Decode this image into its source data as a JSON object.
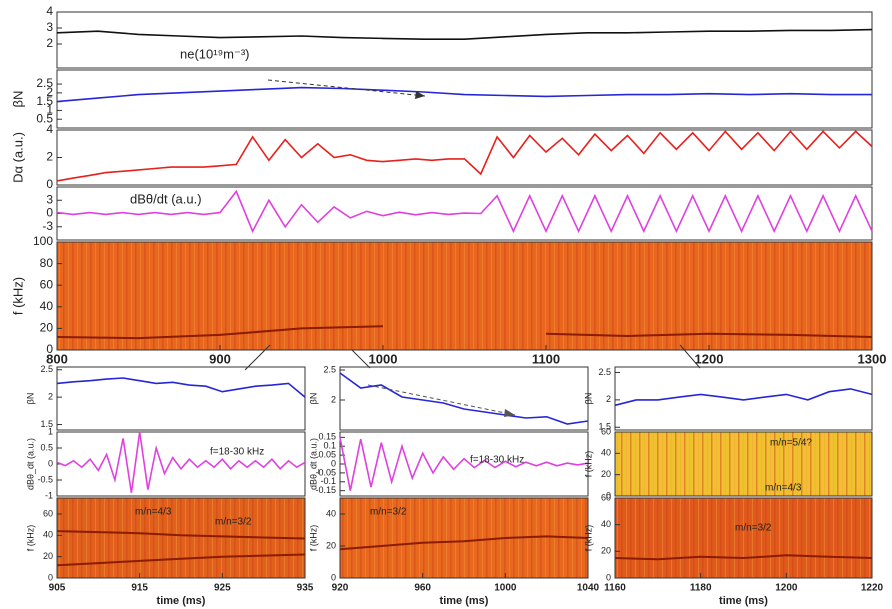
{
  "chart_data": [
    {
      "type": "line",
      "ylabel": "ne(10¹⁹m⁻³)",
      "xlim": [
        800,
        1300
      ],
      "ylim": [
        0.5,
        4
      ],
      "yticks": [
        2,
        3,
        4
      ],
      "x": [
        800,
        825,
        850,
        875,
        900,
        925,
        950,
        975,
        1000,
        1025,
        1050,
        1075,
        1100,
        1125,
        1150,
        1175,
        1200,
        1225,
        1250,
        1275,
        1300
      ],
      "series": [
        {
          "color": "#111111",
          "values": [
            2.7,
            2.8,
            2.6,
            2.5,
            2.4,
            2.45,
            2.5,
            2.4,
            2.35,
            2.3,
            2.3,
            2.45,
            2.6,
            2.7,
            2.7,
            2.75,
            2.8,
            2.8,
            2.85,
            2.85,
            2.9
          ]
        }
      ]
    },
    {
      "type": "line",
      "ylabel": "βN",
      "xlim": [
        800,
        1300
      ],
      "ylim": [
        0,
        3.3
      ],
      "yticks": [
        0.5,
        1,
        1.5,
        2,
        2.5
      ],
      "x": [
        800,
        825,
        850,
        875,
        900,
        925,
        950,
        975,
        1000,
        1025,
        1050,
        1075,
        1100,
        1125,
        1150,
        1175,
        1200,
        1225,
        1250,
        1275,
        1300
      ],
      "series": [
        {
          "color": "#2626d9",
          "values": [
            1.5,
            1.7,
            1.9,
            2.0,
            2.1,
            2.2,
            2.3,
            2.25,
            2.15,
            2.05,
            1.9,
            1.85,
            1.8,
            1.85,
            1.9,
            1.9,
            1.95,
            1.9,
            1.95,
            1.9,
            1.9
          ]
        }
      ]
    },
    {
      "type": "line",
      "ylabel": "Dα (a.u.)",
      "xlim": [
        800,
        1300
      ],
      "ylim": [
        0,
        4
      ],
      "yticks": [
        0,
        2,
        4
      ],
      "x": [
        800,
        810,
        820,
        830,
        840,
        850,
        860,
        870,
        880,
        890,
        900,
        910,
        920,
        930,
        940,
        950,
        960,
        970,
        980,
        990,
        1000,
        1010,
        1020,
        1030,
        1040,
        1050,
        1060,
        1070,
        1080,
        1090,
        1100,
        1110,
        1120,
        1130,
        1140,
        1150,
        1160,
        1170,
        1180,
        1190,
        1200,
        1210,
        1220,
        1230,
        1240,
        1250,
        1260,
        1270,
        1280,
        1290,
        1300
      ],
      "series": [
        {
          "color": "#e8201c",
          "values": [
            0.3,
            0.5,
            0.7,
            0.9,
            1.0,
            1.1,
            1.2,
            1.3,
            1.3,
            1.3,
            1.4,
            1.5,
            3.5,
            1.8,
            3.3,
            2.0,
            3.0,
            2.0,
            2.2,
            1.8,
            1.7,
            1.8,
            1.9,
            1.8,
            1.9,
            1.9,
            0.8,
            3.5,
            2.0,
            3.6,
            2.4,
            3.4,
            2.2,
            3.7,
            2.5,
            3.6,
            2.3,
            3.8,
            2.6,
            3.8,
            2.5,
            3.9,
            2.6,
            3.8,
            2.5,
            3.9,
            2.6,
            3.9,
            2.7,
            3.9,
            2.8
          ]
        }
      ]
    },
    {
      "type": "line",
      "ylabel": "dBθ/dt (a.u.)",
      "xlim": [
        800,
        1300
      ],
      "ylim": [
        -6,
        6
      ],
      "yticks": [
        -3,
        0,
        3
      ],
      "x": [
        800,
        810,
        820,
        830,
        840,
        850,
        860,
        870,
        880,
        890,
        900,
        910,
        920,
        930,
        940,
        950,
        960,
        970,
        980,
        990,
        1000,
        1010,
        1020,
        1030,
        1040,
        1050,
        1060,
        1070,
        1080,
        1090,
        1100,
        1110,
        1120,
        1130,
        1140,
        1150,
        1160,
        1170,
        1180,
        1190,
        1200,
        1210,
        1220,
        1230,
        1240,
        1250,
        1260,
        1270,
        1280,
        1290,
        1300
      ],
      "series": [
        {
          "color": "#e040e0",
          "values": [
            0.2,
            -0.2,
            0.2,
            -0.2,
            0.2,
            -0.2,
            0.2,
            -0.2,
            0.2,
            -0.2,
            0.2,
            5,
            -4,
            3,
            -3,
            2,
            -2,
            1.5,
            -1,
            0.5,
            -0.5,
            0.3,
            -0.3,
            0.2,
            -0.2,
            0.1,
            0,
            4,
            -4,
            4,
            -4,
            4,
            -4,
            4,
            -4,
            4,
            -4,
            4,
            -4,
            4,
            -4,
            4,
            -4,
            4,
            -4,
            4,
            -4,
            4,
            -4,
            4,
            -4
          ]
        }
      ]
    },
    {
      "type": "line",
      "ylabel": "f (kHz)",
      "xlim": [
        800,
        1300
      ],
      "ylim": [
        0,
        100
      ],
      "yticks": [
        0,
        20,
        40,
        60,
        80,
        100
      ],
      "xticks": [
        800,
        900,
        1000,
        1100,
        1200,
        1300
      ],
      "x": [
        800,
        850,
        900,
        950,
        1000,
        1050,
        1100,
        1150,
        1200,
        1250,
        1300
      ],
      "series": [
        {
          "color": "#8a1c00",
          "values": [
            12,
            11,
            14,
            20,
            22,
            null,
            15,
            13,
            15,
            14,
            12
          ]
        }
      ]
    },
    {
      "type": "line",
      "ylabel": "βN",
      "xlim": [
        905,
        935
      ],
      "ylim": [
        1.4,
        2.55
      ],
      "yticks": [
        1.5,
        2,
        2.5
      ],
      "x": [
        905,
        907,
        909,
        911,
        913,
        915,
        917,
        919,
        921,
        923,
        925,
        927,
        929,
        931,
        933,
        935
      ],
      "series": [
        {
          "color": "#2626d9",
          "values": [
            2.25,
            2.28,
            2.3,
            2.33,
            2.35,
            2.3,
            2.25,
            2.27,
            2.22,
            2.2,
            2.1,
            2.15,
            2.2,
            2.22,
            2.25,
            2.0
          ]
        }
      ]
    },
    {
      "type": "line",
      "ylabel": "dBθ_dt (a.u.)",
      "xlim": [
        905,
        935
      ],
      "ylim": [
        -1,
        1
      ],
      "yticks": [
        -1,
        -0.5,
        0,
        0.5,
        1
      ],
      "annotations": [
        "f=18-30 kHz"
      ],
      "x": [
        905,
        906,
        907,
        908,
        909,
        910,
        911,
        912,
        913,
        914,
        915,
        916,
        917,
        918,
        919,
        920,
        921,
        922,
        923,
        924,
        925,
        926,
        927,
        928,
        929,
        930,
        931,
        932,
        933,
        934,
        935
      ],
      "series": [
        {
          "color": "#e040e0",
          "values": [
            0.05,
            -0.05,
            0.1,
            -0.1,
            0.15,
            -0.2,
            0.3,
            -0.5,
            0.8,
            -0.9,
            1.0,
            -0.8,
            0.5,
            -0.3,
            0.2,
            -0.15,
            0.15,
            -0.1,
            0.1,
            -0.1,
            0.15,
            -0.15,
            0.1,
            -0.1,
            0.1,
            -0.1,
            0.15,
            -0.15,
            0.1,
            -0.1,
            0.05
          ]
        }
      ]
    },
    {
      "type": "line",
      "ylabel": "f (kHz)",
      "xlim": [
        905,
        935
      ],
      "ylim": [
        0,
        75
      ],
      "yticks": [
        0,
        20,
        40,
        60
      ],
      "xticks": [
        905,
        915,
        925,
        935
      ],
      "xlabel": "time (ms)",
      "annotations": [
        "m/n=4/3",
        "m/n=3/2"
      ],
      "x": [
        905,
        910,
        915,
        920,
        925,
        930,
        935
      ],
      "series": [
        {
          "color": "#8a1c00",
          "values": [
            12,
            14,
            16,
            18,
            20,
            21,
            22
          ]
        },
        {
          "color": "#8a1c00",
          "values": [
            44,
            43,
            42,
            40,
            39,
            38,
            37
          ]
        }
      ]
    },
    {
      "type": "line",
      "ylabel": "βN",
      "xlim": [
        920,
        1040
      ],
      "ylim": [
        1.5,
        2.55
      ],
      "yticks": [
        2,
        2.5
      ],
      "x": [
        920,
        930,
        940,
        950,
        960,
        970,
        980,
        990,
        1000,
        1010,
        1020,
        1030,
        1040
      ],
      "series": [
        {
          "color": "#2626d9",
          "values": [
            2.45,
            2.2,
            2.25,
            2.05,
            2.0,
            1.95,
            1.85,
            1.8,
            1.75,
            1.7,
            1.72,
            1.6,
            1.65
          ]
        }
      ]
    },
    {
      "type": "line",
      "ylabel": "dBθ_dt (a.u.)",
      "xlim": [
        920,
        1040
      ],
      "ylim": [
        -0.18,
        0.18
      ],
      "yticks": [
        -0.15,
        -0.1,
        -0.05,
        0,
        0.05,
        0.1,
        0.15
      ],
      "annotations": [
        "f=18-30 kHz"
      ],
      "x": [
        920,
        925,
        930,
        935,
        940,
        945,
        950,
        955,
        960,
        965,
        970,
        975,
        980,
        985,
        990,
        995,
        1000,
        1005,
        1010,
        1015,
        1020,
        1025,
        1030,
        1035,
        1040
      ],
      "series": [
        {
          "color": "#e040e0",
          "values": [
            0.15,
            -0.15,
            0.14,
            -0.13,
            0.12,
            -0.1,
            0.1,
            -0.08,
            0.06,
            -0.05,
            0.04,
            -0.03,
            0.03,
            -0.02,
            0.02,
            -0.02,
            0.015,
            -0.015,
            0.01,
            -0.01,
            0.01,
            -0.01,
            0.005,
            -0.005,
            0.005
          ]
        }
      ]
    },
    {
      "type": "line",
      "ylabel": "f (kHz)",
      "xlim": [
        920,
        1040
      ],
      "ylim": [
        0,
        50
      ],
      "yticks": [
        0,
        20,
        40
      ],
      "xticks": [
        920,
        960,
        1000,
        1040
      ],
      "xlabel": "time (ms)",
      "annotations": [
        "m/n=3/2"
      ],
      "x": [
        920,
        940,
        960,
        980,
        1000,
        1020,
        1040
      ],
      "series": [
        {
          "color": "#8a1c00",
          "values": [
            18,
            20,
            22,
            23,
            25,
            26,
            25
          ]
        }
      ]
    },
    {
      "type": "line",
      "ylabel": "βN",
      "xlim": [
        1160,
        1220
      ],
      "ylim": [
        1.45,
        2.6
      ],
      "yticks": [
        1.5,
        2,
        2.5
      ],
      "x": [
        1160,
        1165,
        1170,
        1175,
        1180,
        1185,
        1190,
        1195,
        1200,
        1205,
        1210,
        1215,
        1220
      ],
      "series": [
        {
          "color": "#2626d9",
          "values": [
            1.9,
            2.0,
            2.0,
            2.05,
            2.1,
            2.05,
            2.0,
            2.05,
            2.1,
            2.0,
            2.15,
            2.2,
            2.1
          ]
        }
      ]
    },
    {
      "type": "line",
      "ylabel": "f (kHz)",
      "xlim": [
        1160,
        1220
      ],
      "ylim": [
        0,
        60
      ],
      "yticks": [
        0,
        20,
        40,
        60
      ],
      "annotations": [
        "m/n=5/4?",
        "m/n=4/3"
      ],
      "x": [],
      "series": []
    },
    {
      "type": "line",
      "ylabel": "f (kHz)",
      "xlim": [
        1160,
        1220
      ],
      "ylim": [
        0,
        60
      ],
      "yticks": [
        0,
        20,
        40,
        60
      ],
      "xticks": [
        1160,
        1180,
        1200,
        1220
      ],
      "xlabel": "time (ms)",
      "annotations": [
        "m/n=3/2"
      ],
      "x": [
        1160,
        1170,
        1180,
        1190,
        1200,
        1210,
        1220
      ],
      "series": [
        {
          "color": "#8a1c00",
          "values": [
            15,
            14,
            16,
            15,
            17,
            16,
            15
          ]
        }
      ]
    }
  ]
}
